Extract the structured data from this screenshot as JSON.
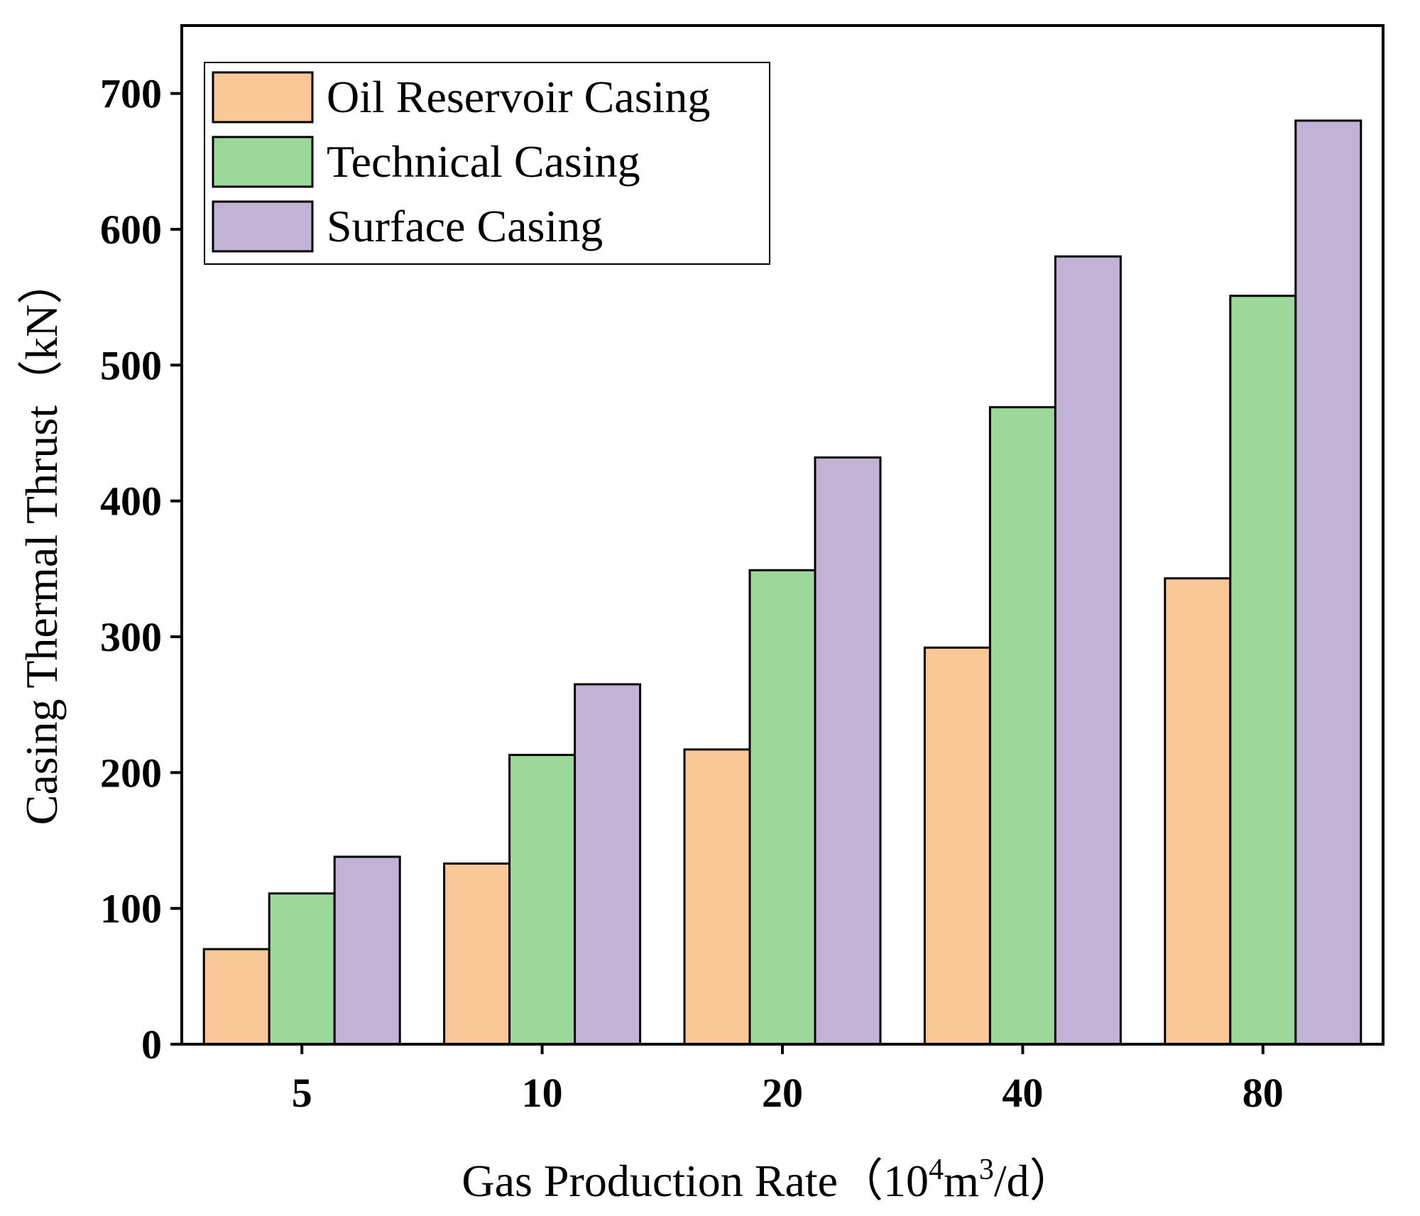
{
  "chart_data": {
    "type": "bar",
    "categories": [
      "5",
      "10",
      "20",
      "40",
      "80"
    ],
    "series": [
      {
        "name": "Oil Reservoir Casing",
        "color": "#FAC896",
        "values": [
          70,
          133,
          217,
          292,
          343
        ]
      },
      {
        "name": "Technical Casing",
        "color": "#9DD89B",
        "values": [
          111,
          213,
          349,
          469,
          551
        ]
      },
      {
        "name": "Surface Casing",
        "color": "#C1B2D6",
        "values": [
          138,
          265,
          432,
          580,
          680
        ]
      }
    ],
    "xlabel": "Gas Production Rate（10",
    "xlabel_sup1": "4",
    "xlabel_mid": "m",
    "xlabel_sup2": "3",
    "xlabel_end": "/d）",
    "ylabel": "Casing Thermal Thrust（kN）",
    "ylim": [
      0,
      750
    ],
    "yticks": [
      0,
      100,
      200,
      300,
      400,
      500,
      600,
      700
    ],
    "legend_position": "top-left",
    "grid": false
  }
}
